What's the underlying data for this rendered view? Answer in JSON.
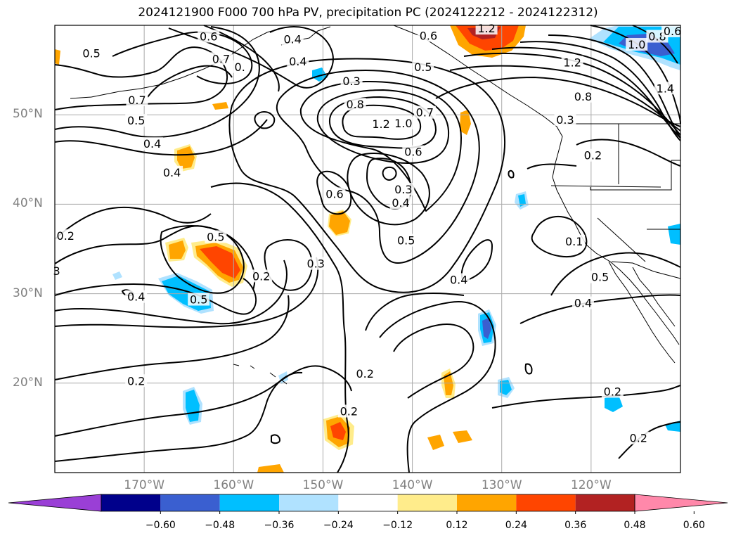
{
  "title": "2024121900 F000 700 hPa PV, precipitation PC (2024122212 - 2024122312)",
  "map": {
    "lon_range": [
      -180,
      -110
    ],
    "lat_range": [
      10,
      60
    ],
    "lat_ticks": [
      {
        "value": 20,
        "label": "20°N"
      },
      {
        "value": 30,
        "label": "30°N"
      },
      {
        "value": 40,
        "label": "40°N"
      },
      {
        "value": 50,
        "label": "50°N"
      }
    ],
    "lon_ticks": [
      {
        "value": -170,
        "label": "170°W"
      },
      {
        "value": -160,
        "label": "160°W"
      },
      {
        "value": -150,
        "label": "150°W"
      },
      {
        "value": -140,
        "label": "140°W"
      },
      {
        "value": -130,
        "label": "130°W"
      },
      {
        "value": -120,
        "label": "120°W"
      }
    ],
    "gridlines": true,
    "contour_labels": [
      {
        "text": "0.5",
        "lon": -175.9,
        "lat": 56.8
      },
      {
        "text": "0.6",
        "lon": -162.8,
        "lat": 58.7
      },
      {
        "text": "0.7",
        "lon": -161.4,
        "lat": 56.2
      },
      {
        "text": "0.",
        "lon": -159.3,
        "lat": 55.3
      },
      {
        "text": "0.4",
        "lon": -153.4,
        "lat": 58.4
      },
      {
        "text": "0.4",
        "lon": -152.8,
        "lat": 55.9
      },
      {
        "text": "0.7",
        "lon": -170.8,
        "lat": 51.6
      },
      {
        "text": "0.5",
        "lon": -170.9,
        "lat": 49.3
      },
      {
        "text": "0.4",
        "lon": -169.1,
        "lat": 46.7
      },
      {
        "text": "0.4",
        "lon": -166.9,
        "lat": 43.5
      },
      {
        "text": "0.3",
        "lon": -146.8,
        "lat": 53.7
      },
      {
        "text": "0.8",
        "lon": -146.4,
        "lat": 51.1
      },
      {
        "text": "1.2",
        "lon": -143.5,
        "lat": 48.9
      },
      {
        "text": "1.0",
        "lon": -141.0,
        "lat": 49.0
      },
      {
        "text": "0.7",
        "lon": -138.6,
        "lat": 50.2
      },
      {
        "text": "0.6",
        "lon": -139.9,
        "lat": 45.8
      },
      {
        "text": "0.3",
        "lon": -141.0,
        "lat": 41.6
      },
      {
        "text": "0.4",
        "lon": -141.3,
        "lat": 40.1
      },
      {
        "text": "0.6",
        "lon": -148.7,
        "lat": 41.1
      },
      {
        "text": "0.5",
        "lon": -140.7,
        "lat": 35.9
      },
      {
        "text": "0.3",
        "lon": -150.8,
        "lat": 33.3
      },
      {
        "text": "0.2",
        "lon": -156.9,
        "lat": 31.9
      },
      {
        "text": "0.4",
        "lon": -134.8,
        "lat": 31.5
      },
      {
        "text": "0.2",
        "lon": -178.8,
        "lat": 36.4
      },
      {
        "text": "3",
        "lon": -179.8,
        "lat": 32.5
      },
      {
        "text": "0.5",
        "lon": -162.0,
        "lat": 36.3
      },
      {
        "text": "0.5",
        "lon": -163.9,
        "lat": 29.3
      },
      {
        "text": "0.4",
        "lon": -170.9,
        "lat": 29.6
      },
      {
        "text": "0.2",
        "lon": -170.9,
        "lat": 20.2
      },
      {
        "text": "0.2",
        "lon": -145.3,
        "lat": 21.0
      },
      {
        "text": "0.2",
        "lon": -147.1,
        "lat": 16.8
      },
      {
        "text": "0.6",
        "lon": -138.2,
        "lat": 58.8
      },
      {
        "text": "1.2",
        "lon": -131.7,
        "lat": 59.6
      },
      {
        "text": "0.5",
        "lon": -138.8,
        "lat": 55.3
      },
      {
        "text": "1.2",
        "lon": -122.1,
        "lat": 55.8
      },
      {
        "text": "1.0",
        "lon": -114.9,
        "lat": 57.8
      },
      {
        "text": "0.8",
        "lon": -112.6,
        "lat": 58.7
      },
      {
        "text": "0.6",
        "lon": -110.9,
        "lat": 59.3
      },
      {
        "text": "1.4",
        "lon": -111.7,
        "lat": 52.9
      },
      {
        "text": "0.8",
        "lon": -120.9,
        "lat": 52.0
      },
      {
        "text": "0.3",
        "lon": -122.9,
        "lat": 49.4
      },
      {
        "text": "0.2",
        "lon": -119.8,
        "lat": 45.4
      },
      {
        "text": "0.1",
        "lon": -121.9,
        "lat": 35.8
      },
      {
        "text": "0.5",
        "lon": -119.0,
        "lat": 31.8
      },
      {
        "text": "0.4",
        "lon": -120.9,
        "lat": 28.9
      },
      {
        "text": "0.2",
        "lon": -117.6,
        "lat": 19.0
      },
      {
        "text": "0.2",
        "lon": -114.7,
        "lat": 13.8
      }
    ]
  },
  "colorbar": {
    "colors": [
      "#9a3fd6",
      "#00008b",
      "#3a5fd0",
      "#00bfff",
      "#b0e2ff",
      "#ffffff",
      "#ffec8b",
      "#ffa500",
      "#ff4500",
      "#b22222",
      "#ff88aa"
    ],
    "tick_labels": [
      "−0.60",
      "−0.48",
      "−0.36",
      "−0.24",
      "−0.12",
      "0.12",
      "0.24",
      "0.36",
      "0.48",
      "0.60"
    ]
  }
}
